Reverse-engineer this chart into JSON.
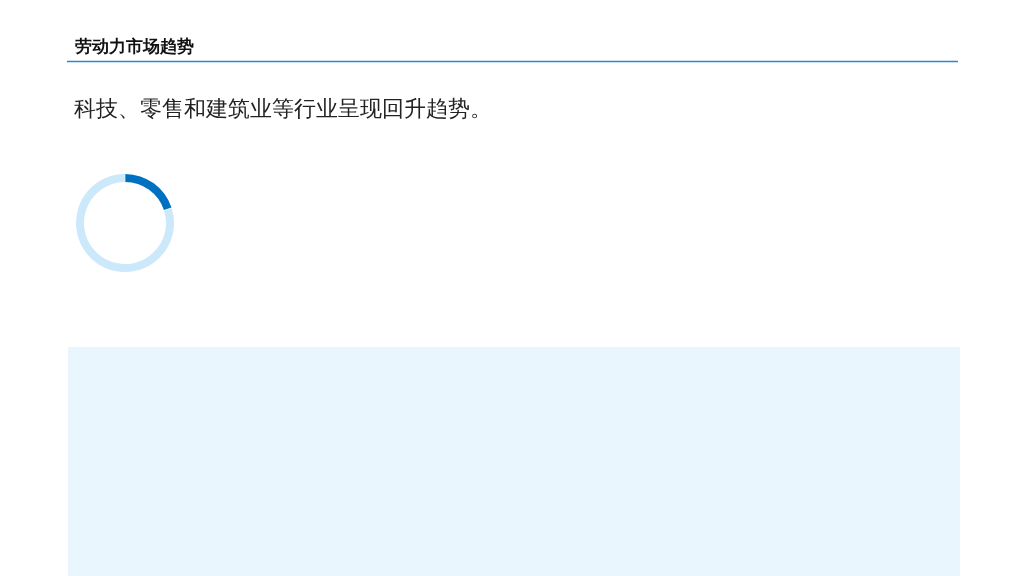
{
  "chart_data": {
    "type": "donut",
    "title": "劳动力市场趋势",
    "subtitle": "科技、零售和建筑业等行业呈现回升趋势。",
    "categories": [
      null,
      null
    ],
    "values": [
      20,
      80
    ],
    "colors": [
      "#0070c0",
      "#cce8fb"
    ],
    "legend": false
  }
}
